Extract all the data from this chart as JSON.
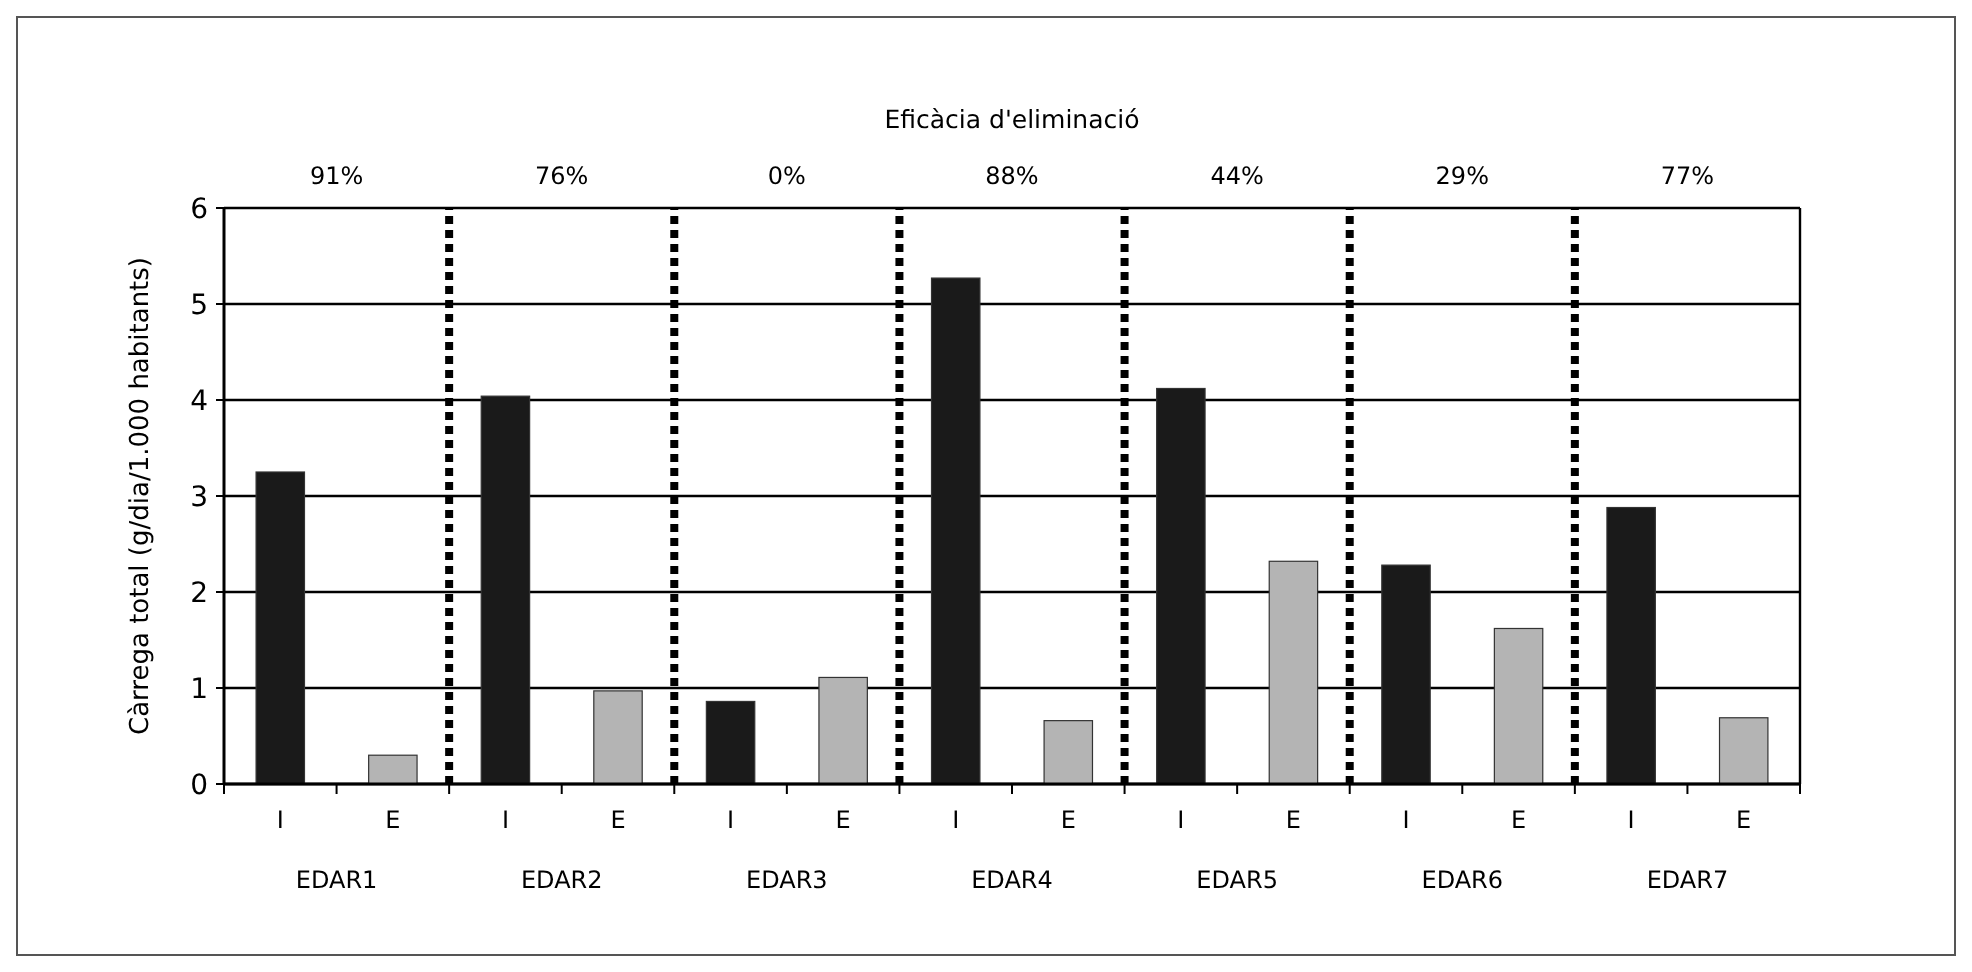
{
  "chart_data": {
    "type": "bar",
    "title": "Eficàcia d'eliminació",
    "ylabel": "Càrrega total (g/dia/1.000 habitants)",
    "categories": [
      "I",
      "E",
      "I",
      "E",
      "I",
      "E",
      "I",
      "E",
      "I",
      "E",
      "I",
      "E",
      "I",
      "E"
    ],
    "values": [
      3.25,
      0.3,
      4.04,
      0.97,
      0.86,
      1.11,
      5.27,
      0.66,
      4.12,
      2.32,
      2.28,
      1.62,
      2.88,
      0.69
    ],
    "colors": [
      "#1a1a1a",
      "#b4b4b4",
      "#1a1a1a",
      "#b4b4b4",
      "#1a1a1a",
      "#b4b4b4",
      "#1a1a1a",
      "#b4b4b4",
      "#1a1a1a",
      "#b4b4b4",
      "#1a1a1a",
      "#b4b4b4",
      "#1a1a1a",
      "#b4b4b4"
    ],
    "ylim": [
      0,
      6
    ],
    "yticks": [
      0,
      1,
      2,
      3,
      4,
      5,
      6
    ],
    "grid": "y",
    "annotations": [
      "91%",
      "76%",
      "0%",
      "88%",
      "44%",
      "29%",
      "77%",
      "EDAR1",
      "EDAR2",
      "EDAR3",
      "EDAR4",
      "EDAR5",
      "EDAR6",
      "EDAR7"
    ]
  }
}
